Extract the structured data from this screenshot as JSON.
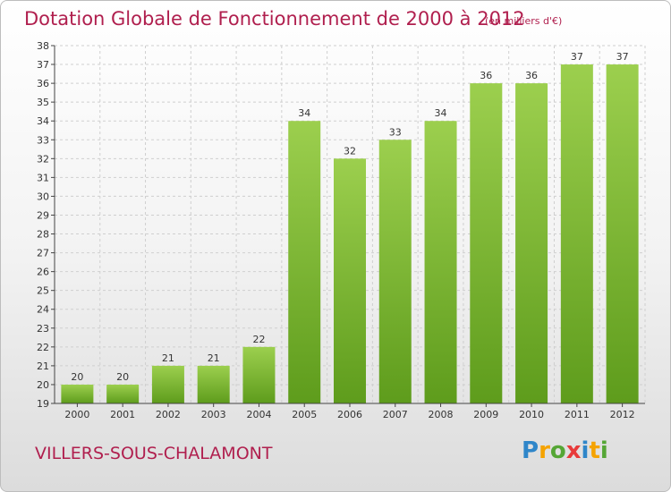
{
  "header": {
    "title": "Dotation Globale de Fonctionnement de 2000 à 2012",
    "subtitle": "(en milliers d'€)"
  },
  "footer": {
    "commune": "VILLERS-SOUS-CHALAMONT"
  },
  "logo": {
    "letters": [
      "P",
      "r",
      "o",
      "x",
      "i",
      "t",
      "i"
    ],
    "colors": [
      "#2f86c9",
      "#f5a300",
      "#55a635",
      "#e83a3a",
      "#2f86c9",
      "#f5a300",
      "#55a635"
    ]
  },
  "chart_data": {
    "type": "bar",
    "title": "Dotation Globale de Fonctionnement de 2000 à 2012",
    "subtitle": "(en milliers d'€)",
    "categories": [
      "2000",
      "2001",
      "2002",
      "2003",
      "2004",
      "2005",
      "2006",
      "2007",
      "2008",
      "2009",
      "2010",
      "2011",
      "2012"
    ],
    "values": [
      20,
      20,
      21,
      21,
      22,
      34,
      32,
      33,
      34,
      36,
      36,
      37,
      37
    ],
    "ylim": [
      19,
      38
    ],
    "yticks": [
      19,
      20,
      21,
      22,
      23,
      24,
      25,
      26,
      27,
      28,
      29,
      30,
      31,
      32,
      33,
      34,
      35,
      36,
      37,
      38
    ],
    "grid": true,
    "bar_color_top": "#9ccf4e",
    "bar_color_bottom": "#5e9c1c"
  }
}
